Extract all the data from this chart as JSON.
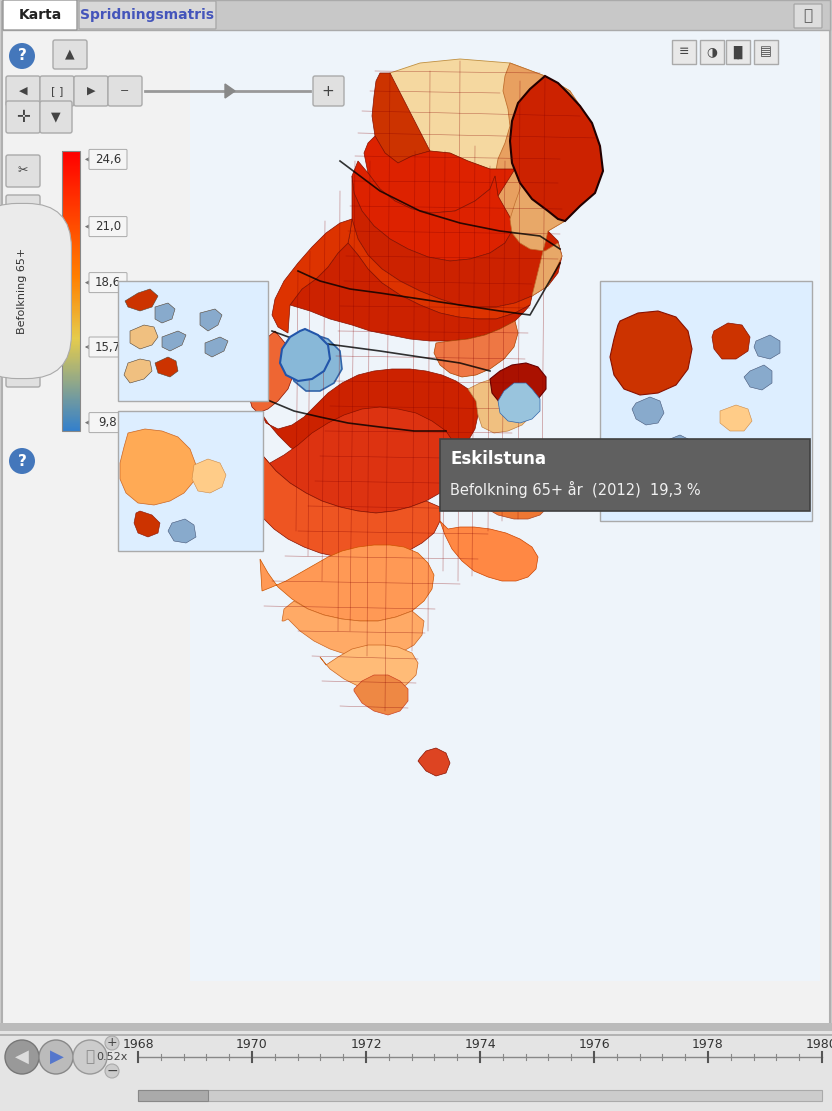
{
  "title_tab1": "Karta",
  "title_tab2": "Spridningsmatris",
  "legend_label": "Befolkning 65+",
  "legend_values": [
    "24,6",
    "21,0",
    "18,6",
    "15,7",
    "9,8"
  ],
  "tooltip_title": "Eskilstuna",
  "tooltip_text": "Befolkning 65+ år  (2012)  19,3 %",
  "timeline_years": [
    "1968",
    "1970",
    "1972",
    "1974",
    "1976",
    "1978",
    "1980"
  ],
  "speed_label": "0.52x",
  "main_bg": "#f2f2f2",
  "tab_bg": "#c8c8c8",
  "active_tab_bg": "#ffffff",
  "inactive_tab_bg": "#d8d8d8",
  "tooltip_bg": "#606060",
  "tooltip_text_color": "#ffffff",
  "bottom_panel_bg": "#e4e4e4",
  "colorbar_top": "#cc0000",
  "colorbar_mid_hi": "#dd6622",
  "colorbar_mid": "#e8a060",
  "colorbar_mid_lo": "#b8cce0",
  "colorbar_low": "#3366aa",
  "btn_bg": "#e0e0e0",
  "btn_border": "#aaaaaa",
  "icon_blue": "#4477bb",
  "map_bg": "#f0f4f8",
  "sweden_red_dark": "#cc1100",
  "sweden_red": "#dd2200",
  "sweden_orange": "#ee7733",
  "sweden_tan": "#f0c080",
  "sweden_blue_light": "#88aacc",
  "sweden_blue": "#6688bb",
  "inset_bg": "#ddeeff"
}
